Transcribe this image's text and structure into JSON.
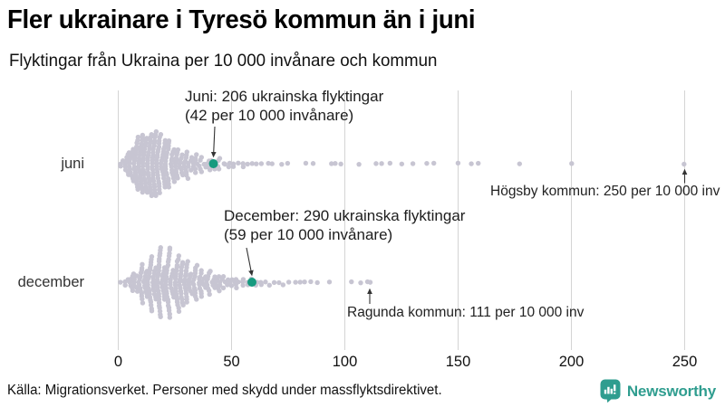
{
  "header": {
    "title": "Fler ukrainare i Tyresö kommun än i juni",
    "subtitle": "Flyktingar från Ukraina per 10 000 invånare och kommun"
  },
  "chart_data": {
    "type": "beeswarm",
    "unit_label": "per 10 000 invånare",
    "x_axis": {
      "min": 0,
      "max": 250,
      "ticks": [
        0,
        50,
        100,
        150,
        200,
        250
      ],
      "grid": true
    },
    "rows": [
      {
        "label": "juni",
        "highlight": {
          "value": 42,
          "annotation_line1": "Juni: 206 ukrainska flyktingar",
          "annotation_line2": "(42 per 10 000 invånare)"
        },
        "max_annotation": {
          "text": "Högsby kommun: 250 per 10 000 inv",
          "value": 250
        },
        "bins": [
          [
            1,
            2
          ],
          [
            3,
            6
          ],
          [
            5,
            11
          ],
          [
            7,
            15
          ],
          [
            9,
            20
          ],
          [
            11,
            23
          ],
          [
            13,
            22
          ],
          [
            15,
            23
          ],
          [
            17,
            20
          ],
          [
            19,
            18
          ],
          [
            21,
            17
          ],
          [
            23,
            14
          ],
          [
            25,
            12
          ],
          [
            27,
            10
          ],
          [
            29,
            8
          ],
          [
            31,
            7
          ],
          [
            33,
            6
          ],
          [
            35,
            5
          ],
          [
            37,
            5
          ],
          [
            39,
            4
          ],
          [
            41,
            4
          ],
          [
            43,
            3
          ],
          [
            45,
            3
          ],
          [
            47,
            2
          ],
          [
            49,
            2
          ],
          [
            51,
            2
          ],
          [
            53,
            1
          ],
          [
            55,
            2
          ],
          [
            57,
            1
          ],
          [
            59,
            1
          ],
          [
            61,
            1
          ],
          [
            63,
            1
          ],
          [
            66,
            1
          ],
          [
            68,
            1
          ],
          [
            72,
            1
          ],
          [
            75,
            1
          ],
          [
            83,
            1
          ],
          [
            86,
            1
          ],
          [
            94,
            1
          ],
          [
            96,
            1
          ],
          [
            98,
            1
          ],
          [
            106,
            1
          ],
          [
            114,
            1
          ],
          [
            116,
            1
          ],
          [
            120,
            1
          ],
          [
            125,
            1
          ],
          [
            130,
            1
          ],
          [
            136,
            1
          ],
          [
            139,
            1
          ],
          [
            150,
            1
          ],
          [
            156,
            1
          ],
          [
            159,
            1
          ],
          [
            177,
            1
          ],
          [
            200,
            1
          ],
          [
            250,
            1
          ]
        ]
      },
      {
        "label": "december",
        "highlight": {
          "value": 59,
          "annotation_line1": "December: 290 ukrainska flyktingar",
          "annotation_line2": "(59 per 10 000 invånare)"
        },
        "max_annotation": {
          "text": "Ragunda kommun: 111 per 10 000 inv",
          "value": 111
        },
        "bins": [
          [
            1,
            1
          ],
          [
            3,
            2
          ],
          [
            5,
            4
          ],
          [
            7,
            7
          ],
          [
            9,
            10
          ],
          [
            11,
            12
          ],
          [
            13,
            15
          ],
          [
            15,
            17
          ],
          [
            17,
            18
          ],
          [
            19,
            19
          ],
          [
            21,
            19
          ],
          [
            23,
            18
          ],
          [
            25,
            17
          ],
          [
            27,
            16
          ],
          [
            29,
            14
          ],
          [
            31,
            12
          ],
          [
            33,
            11
          ],
          [
            35,
            10
          ],
          [
            37,
            8
          ],
          [
            39,
            7
          ],
          [
            41,
            6
          ],
          [
            43,
            6
          ],
          [
            45,
            5
          ],
          [
            47,
            4
          ],
          [
            49,
            4
          ],
          [
            51,
            3
          ],
          [
            53,
            3
          ],
          [
            55,
            3
          ],
          [
            57,
            2
          ],
          [
            59,
            2
          ],
          [
            61,
            2
          ],
          [
            63,
            2
          ],
          [
            65,
            1
          ],
          [
            67,
            1
          ],
          [
            69,
            1
          ],
          [
            71,
            1
          ],
          [
            73,
            1
          ],
          [
            75,
            1
          ],
          [
            78,
            1
          ],
          [
            80,
            1
          ],
          [
            82,
            1
          ],
          [
            85,
            1
          ],
          [
            88,
            1
          ],
          [
            93,
            1
          ],
          [
            103,
            1
          ],
          [
            107,
            1
          ],
          [
            110,
            1
          ],
          [
            111,
            1
          ]
        ]
      }
    ]
  },
  "footer": {
    "source": "Källa: Migrationsverket. Personer med skydd under massflyktsdirektivet.",
    "brand": "Newsworthy"
  },
  "colors": {
    "dot": "#c7c5d2",
    "highlight": "#169a7f",
    "grid": "#d4d4d4",
    "brand": "#2f9d8f",
    "arrow": "#333333"
  }
}
